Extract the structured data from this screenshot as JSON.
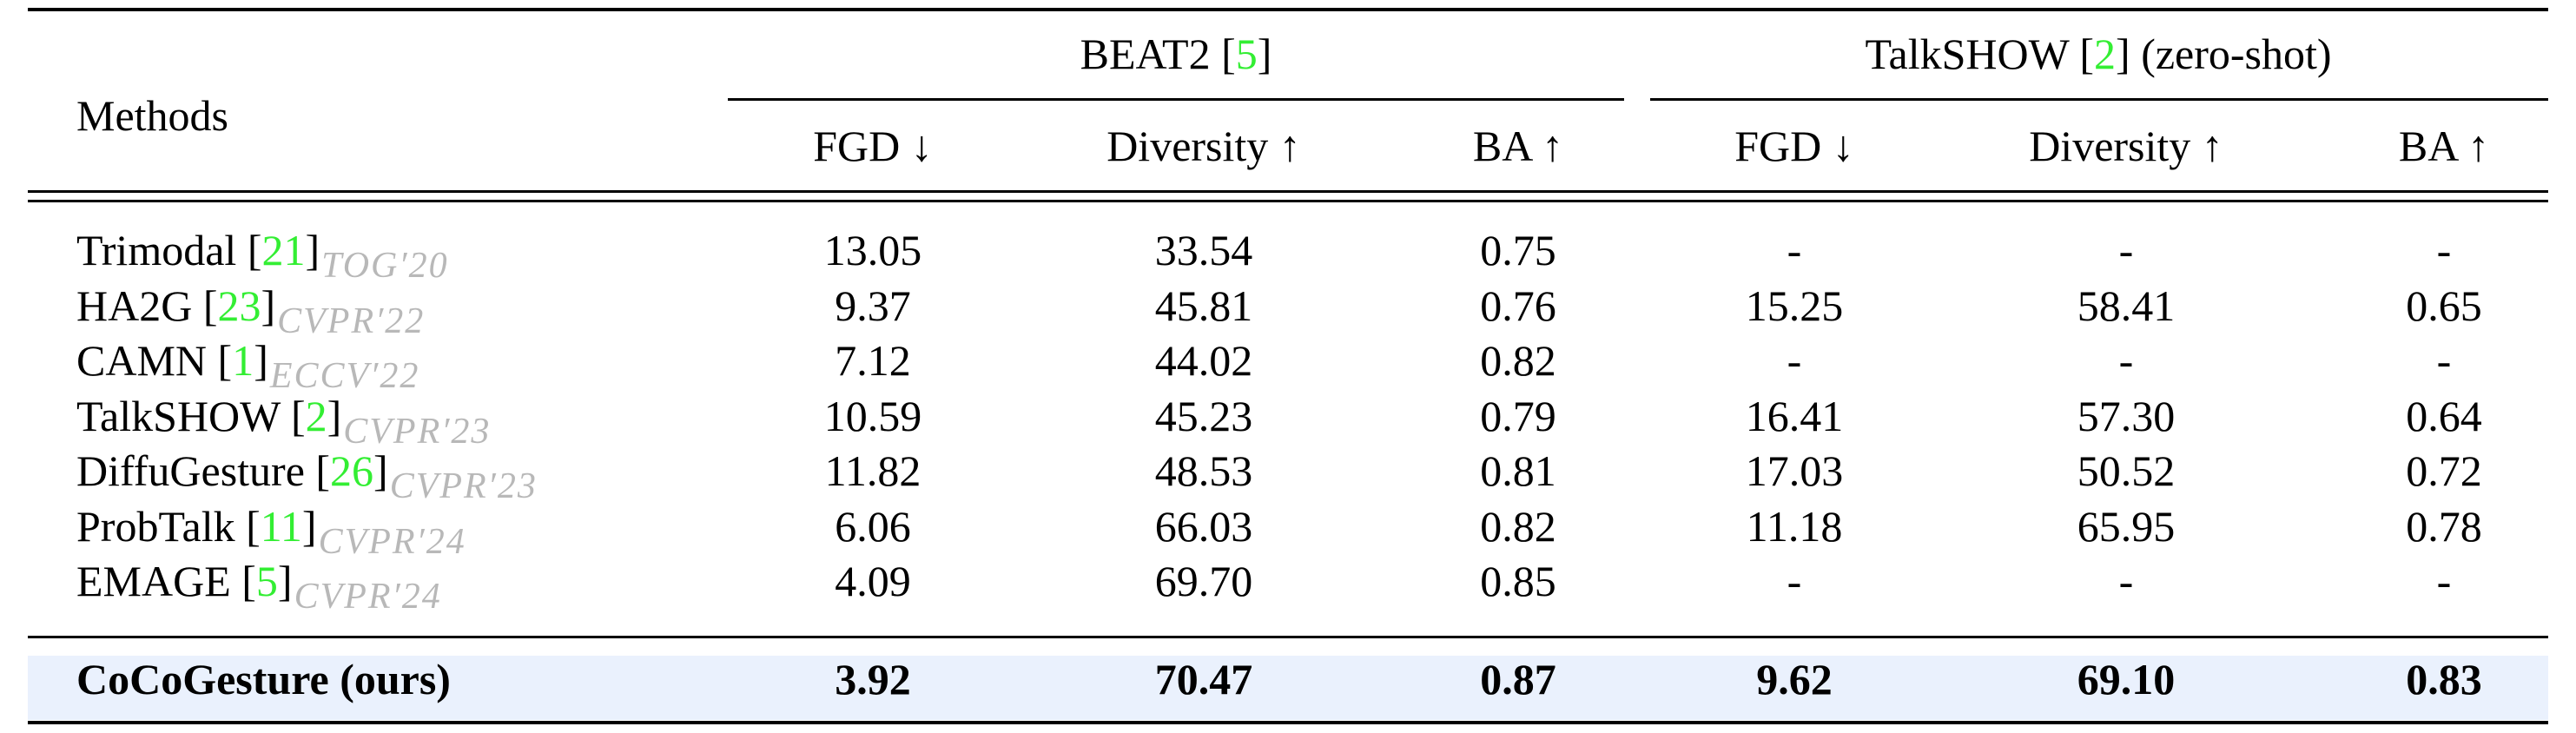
{
  "header": {
    "methods": "Methods",
    "groups": [
      {
        "name": "BEAT2",
        "cite": "5",
        "suffix": ""
      },
      {
        "name": "TalkSHOW",
        "cite": "2",
        "suffix": "(zero-shot)"
      }
    ],
    "metrics": [
      "FGD ↓",
      "Diversity ↑",
      "BA ↑",
      "FGD ↓",
      "Diversity ↑",
      "BA ↑"
    ]
  },
  "rows": [
    {
      "method": "Trimodal",
      "cite": "21",
      "venue": "TOG′20",
      "values": [
        "13.05",
        "33.54",
        "0.75",
        "-",
        "-",
        "-"
      ]
    },
    {
      "method": "HA2G",
      "cite": "23",
      "venue": "CVPR′22",
      "values": [
        "9.37",
        "45.81",
        "0.76",
        "15.25",
        "58.41",
        "0.65"
      ]
    },
    {
      "method": "CAMN",
      "cite": "1",
      "venue": "ECCV′22",
      "values": [
        "7.12",
        "44.02",
        "0.82",
        "-",
        "-",
        "-"
      ]
    },
    {
      "method": "TalkSHOW",
      "cite": "2",
      "venue": "CVPR′23",
      "values": [
        "10.59",
        "45.23",
        "0.79",
        "16.41",
        "57.30",
        "0.64"
      ]
    },
    {
      "method": "DiffuGesture",
      "cite": "26",
      "venue": "CVPR′23",
      "values": [
        "11.82",
        "48.53",
        "0.81",
        "17.03",
        "50.52",
        "0.72"
      ]
    },
    {
      "method": "ProbTalk",
      "cite": "11",
      "venue": "CVPR′24",
      "values": [
        "6.06",
        "66.03",
        "0.82",
        "11.18",
        "65.95",
        "0.78"
      ]
    },
    {
      "method": "EMAGE",
      "cite": "5",
      "venue": "CVPR′24",
      "values": [
        "4.09",
        "69.70",
        "0.85",
        "-",
        "-",
        "-"
      ]
    }
  ],
  "ours": {
    "method": "CoCoGesture (ours)",
    "values": [
      "3.92",
      "70.47",
      "0.87",
      "9.62",
      "69.10",
      "0.83"
    ]
  }
}
